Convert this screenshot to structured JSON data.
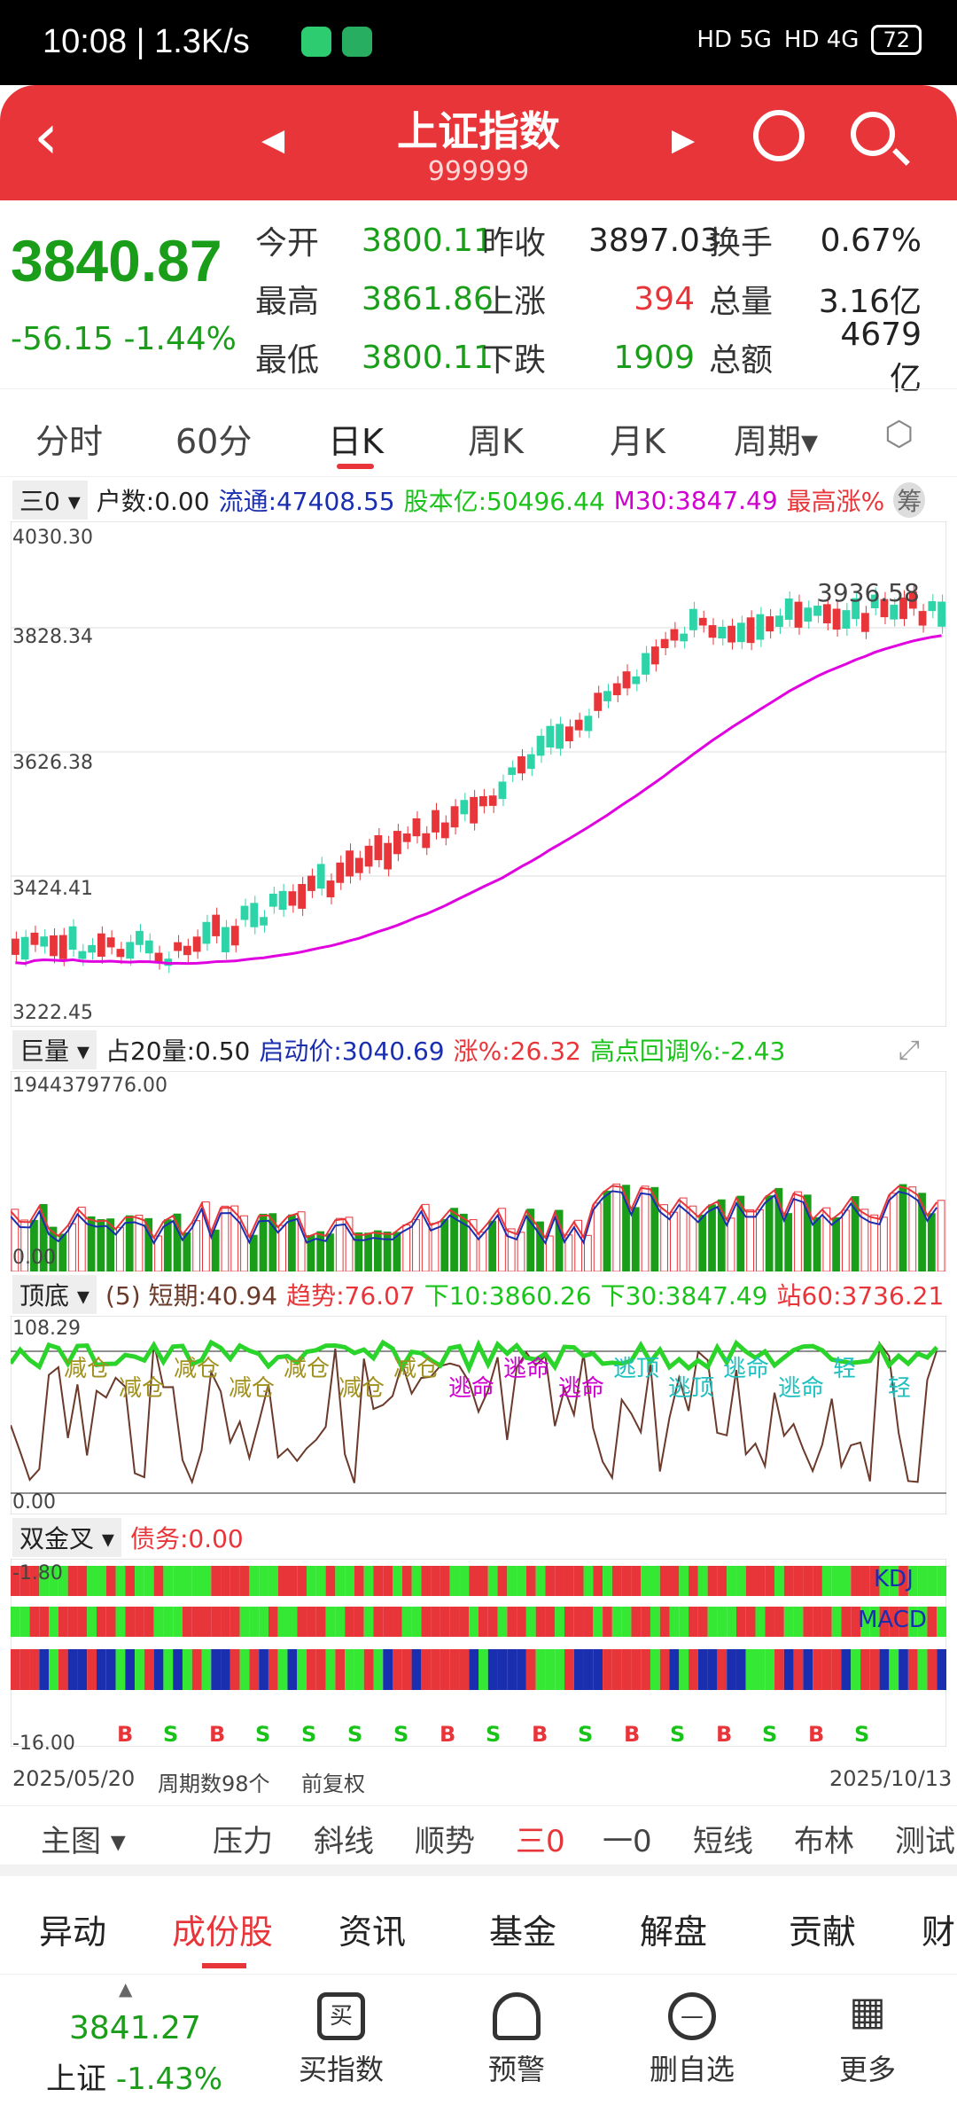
{
  "status": {
    "time": "10:08 | 1.3K/s",
    "net1": "HD 5G",
    "net2": "HD 4G",
    "battery": "72"
  },
  "header": {
    "title": "上证指数",
    "code": "999999"
  },
  "quote": {
    "price": "3840.87",
    "change": "-56.15",
    "pct": "-1.44%",
    "rows": [
      [
        {
          "l": "今开",
          "v": "3800.11",
          "c": "g"
        },
        {
          "l": "昨收",
          "v": "3897.03",
          "c": "k"
        },
        {
          "l": "换手",
          "v": "0.67%",
          "c": "k"
        }
      ],
      [
        {
          "l": "最高",
          "v": "3861.86",
          "c": "g"
        },
        {
          "l": "上涨",
          "v": "394",
          "c": "r"
        },
        {
          "l": "总量",
          "v": "3.16亿",
          "c": "k"
        }
      ],
      [
        {
          "l": "最低",
          "v": "3800.11",
          "c": "g"
        },
        {
          "l": "下跌",
          "v": "1909",
          "c": "g"
        },
        {
          "l": "总额",
          "v": "4679亿",
          "c": "k"
        }
      ]
    ]
  },
  "tabs": [
    "分时",
    "60分",
    "日K",
    "周K",
    "月K",
    "周期▾"
  ],
  "main_ind": {
    "sel": "三0 ▾",
    "a": "户数:0.00",
    "b": "流通:47408.55",
    "c": "股本亿:50496.44",
    "d": "M30:3847.49",
    "e": "最高涨%",
    "f": "筹"
  },
  "main_axis": [
    "4030.30",
    "3828.34",
    "3626.38",
    "3424.41",
    "3222.45"
  ],
  "max_label": "3936.58",
  "vol_ind": {
    "sel": "巨量 ▾",
    "a": "占20量:0.50",
    "b": "启动价:3040.69",
    "c": "涨%:26.32",
    "d": "高点回调%:-2.43"
  },
  "vol_axis": [
    "1944379776.00",
    "0.00"
  ],
  "top_ind": {
    "sel": "顶底 ▾",
    "a": "(5) 短期:40.94",
    "b": "趋势:76.07",
    "c": "下10:3860.26",
    "d": "下30:3847.49",
    "e": "站60:3736.21"
  },
  "top_axis": [
    "108.29",
    "0.00"
  ],
  "top_labels": [
    "减仓",
    "减仓",
    "减仓",
    "减仓",
    "减仓",
    "减仓",
    "减仓",
    "逃命",
    "逃命",
    "逃命",
    "逃顶",
    "逃顶",
    "逃命",
    "逃命",
    "轻",
    "轻"
  ],
  "j_ind": {
    "sel": "双金叉 ▾",
    "a": "债务:0.00"
  },
  "j_axis": [
    "-1.80",
    "-16.00"
  ],
  "j_labels": [
    "KDJ",
    "MACD"
  ],
  "bs": [
    "B",
    "S",
    "B",
    "S",
    "S",
    "S",
    "S",
    "B",
    "S",
    "B",
    "S",
    "B",
    "S",
    "B",
    "S",
    "B",
    "S"
  ],
  "dates": {
    "start": "2025/05/20",
    "count": "周期数98个",
    "adj": "前复权",
    "end": "2025/10/13"
  },
  "ind_tabs": [
    "主图 ▾",
    "压力",
    "斜线",
    "顺势",
    "三0",
    "一0",
    "短线",
    "布林",
    "测试"
  ],
  "bottom_tabs": [
    "异动",
    "成份股",
    "资讯",
    "基金",
    "解盘",
    "贡献",
    "财"
  ],
  "footer": {
    "price": "3841.27",
    "name": "上证",
    "pct": "-1.43%",
    "btns": [
      "买指数",
      "预警",
      "删自选",
      "更多"
    ]
  },
  "chart_data": {
    "type": "candlestick",
    "title": "上证指数 日K",
    "ylim": [
      3222.45,
      4030.3
    ],
    "ma_name": "M30",
    "ma_last": 3847.49,
    "high": 3936.58,
    "last": 3840.87
  }
}
